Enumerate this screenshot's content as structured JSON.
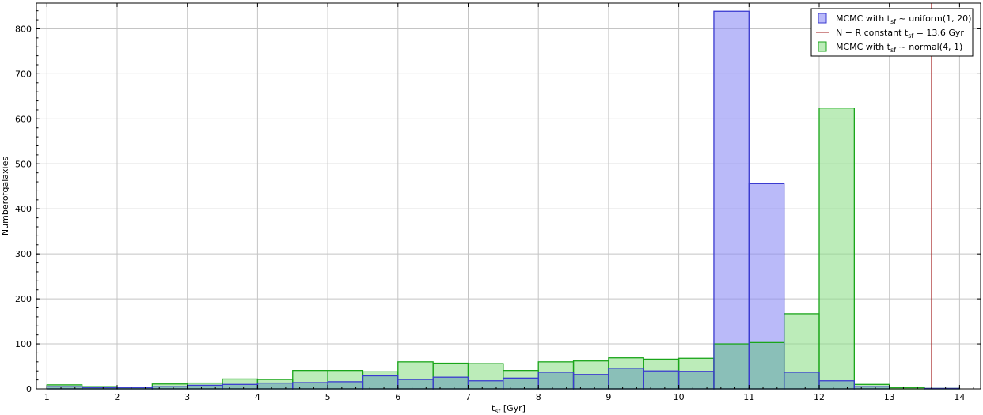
{
  "chart_data": {
    "type": "bar",
    "title": "",
    "xlabel": "t_sf [Gyr]",
    "ylabel": "Numberofgalaxies",
    "xlim": [
      0.85,
      14.3
    ],
    "ylim": [
      0,
      857
    ],
    "grid": true,
    "legend_position": "top-right",
    "x_ticks": [
      1,
      2,
      3,
      4,
      5,
      6,
      7,
      8,
      9,
      10,
      11,
      12,
      13,
      14
    ],
    "y_ticks": [
      0,
      100,
      200,
      300,
      400,
      500,
      600,
      700,
      800
    ],
    "bin_edges": [
      1.0,
      1.5,
      2.0,
      2.5,
      3.0,
      3.5,
      4.0,
      4.5,
      5.0,
      5.5,
      6.0,
      6.5,
      7.0,
      7.5,
      8.0,
      8.5,
      9.0,
      9.5,
      10.0,
      10.5,
      11.0,
      11.5,
      12.0,
      12.5,
      13.0,
      13.5,
      14.0
    ],
    "series": [
      {
        "name": "MCMC with t_sf ~ uniform(1, 20)",
        "key": "uniform",
        "fill": "#8c8cf5",
        "stroke": "#3a3ad0",
        "values": [
          5,
          3,
          3,
          5,
          8,
          10,
          13,
          14,
          16,
          29,
          21,
          26,
          18,
          24,
          37,
          32,
          46,
          40,
          39,
          839,
          456,
          37,
          18,
          5,
          0,
          1
        ]
      },
      {
        "name": "MCMC with t_sf ~ normal(4, 1)",
        "key": "normal",
        "fill": "#8fe08a",
        "stroke": "#1aa51a",
        "values": [
          9,
          5,
          4,
          11,
          13,
          22,
          21,
          41,
          41,
          38,
          60,
          57,
          56,
          41,
          60,
          62,
          69,
          66,
          68,
          100,
          103,
          167,
          624,
          10,
          3,
          1
        ]
      }
    ],
    "reference_line": {
      "name": "N − R constant t_sf = 13.6 Gyr",
      "x": 13.6,
      "color": "#a01818"
    },
    "overlap_color": "#8abfb8"
  }
}
